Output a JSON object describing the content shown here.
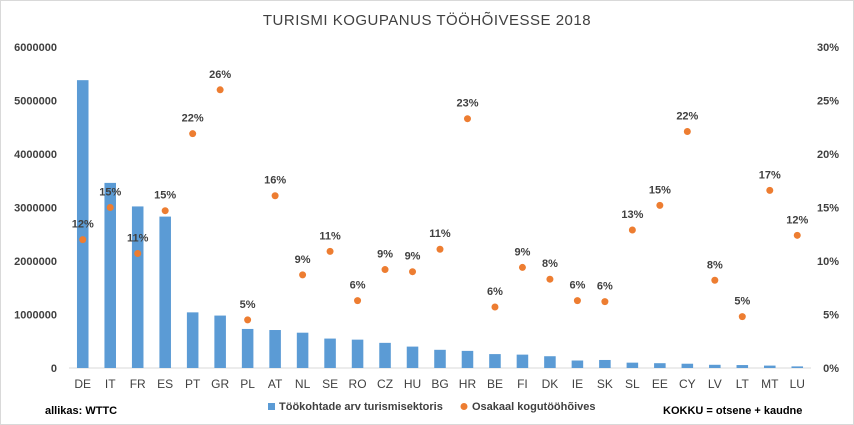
{
  "chart_data": {
    "type": "bar",
    "title": "TURISMI  KOGUPANUS TÖÖHÕIVESSE 2018",
    "categories": [
      "DE",
      "IT",
      "FR",
      "ES",
      "PT",
      "GR",
      "PL",
      "AT",
      "NL",
      "SE",
      "RO",
      "CZ",
      "HU",
      "BG",
      "HR",
      "BE",
      "FI",
      "DK",
      "IE",
      "SK",
      "SL",
      "EE",
      "CY",
      "LV",
      "LT",
      "MT",
      "LU"
    ],
    "series": [
      {
        "name": "Töökohtade arv turismisektoris",
        "axis": "left",
        "render": "bar",
        "color": "#5b9bd5",
        "values": [
          5380000,
          3460000,
          3020000,
          2830000,
          1040000,
          980000,
          730000,
          710000,
          660000,
          550000,
          530000,
          470000,
          400000,
          340000,
          320000,
          260000,
          250000,
          220000,
          140000,
          150000,
          100000,
          90000,
          80000,
          60000,
          55000,
          45000,
          30000
        ]
      },
      {
        "name": "Osakaal kogutööhõives",
        "axis": "right",
        "render": "scatter",
        "color": "#ed7d31",
        "values": [
          12.0,
          15.0,
          10.7,
          14.7,
          21.9,
          26.0,
          4.5,
          16.1,
          8.7,
          10.9,
          6.3,
          9.2,
          9.0,
          11.1,
          23.3,
          5.7,
          9.4,
          8.3,
          6.3,
          6.2,
          12.9,
          15.2,
          22.1,
          8.2,
          4.8,
          16.6,
          12.4
        ],
        "labels": [
          "12%",
          "15%",
          "11%",
          "15%",
          "22%",
          "26%",
          "5%",
          "16%",
          "9%",
          "11%",
          "6%",
          "9%",
          "9%",
          "11%",
          "23%",
          "6%",
          "9%",
          "8%",
          "6%",
          "6%",
          "13%",
          "15%",
          "22%",
          "8%",
          "5%",
          "17%",
          "12%"
        ]
      }
    ],
    "y_left": {
      "min": 0,
      "max": 6000000,
      "ticks": [
        "0",
        "1000000",
        "2000000",
        "3000000",
        "4000000",
        "5000000",
        "6000000"
      ]
    },
    "y_right": {
      "min": 0,
      "max": 30,
      "ticks": [
        "0%",
        "5%",
        "10%",
        "15%",
        "20%",
        "25%",
        "30%"
      ]
    },
    "grid": false,
    "legend_position": "bottom"
  },
  "notes": {
    "source": "allikas: WTTC",
    "definition": "KOKKU = otsene + kaudne"
  }
}
